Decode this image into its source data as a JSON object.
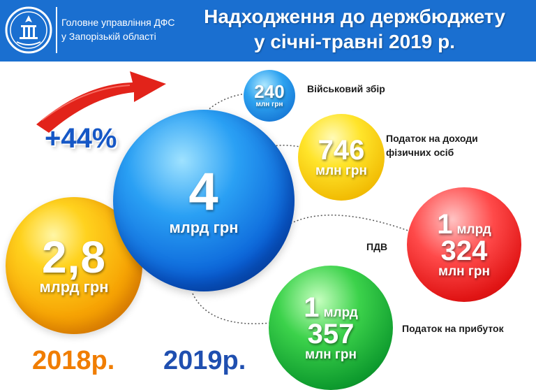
{
  "header": {
    "agency_line1": "Головне управління ДФС",
    "agency_line2": "у Запорізькій області",
    "title_line1": "Надходження до держбюджету",
    "title_line2": "у січні-травні 2019 р."
  },
  "growth": "+44%",
  "balls": {
    "y2018": {
      "value": "2,8",
      "unit": "млрд грн"
    },
    "y2019": {
      "value": "4",
      "unit": "млрд грн"
    },
    "military": {
      "value": "240",
      "unit": "млн грн"
    },
    "pdfo": {
      "value": "746",
      "unit": "млн грн"
    },
    "vat": {
      "value1": "1",
      "unit1": "млрд",
      "value2": "324",
      "unit2": "млн грн"
    },
    "profit": {
      "value1": "1",
      "unit1": "млрд",
      "value2": "357",
      "unit2": "млн грн"
    }
  },
  "labels": {
    "military": "Військовий збір",
    "pdfo_line1": "Податок на доходи",
    "pdfo_line2": "фізичних осіб",
    "vat": "ПДВ",
    "profit": "Податок на прибуток"
  },
  "years": {
    "y2018": "2018р.",
    "y2019": "2019р."
  },
  "colors": {
    "header_bg": "#1a6fd0",
    "year2018": "#f07d00",
    "year2019": "#1f4fb0",
    "growth": "#1557c6",
    "arrow": "#e2231a"
  }
}
